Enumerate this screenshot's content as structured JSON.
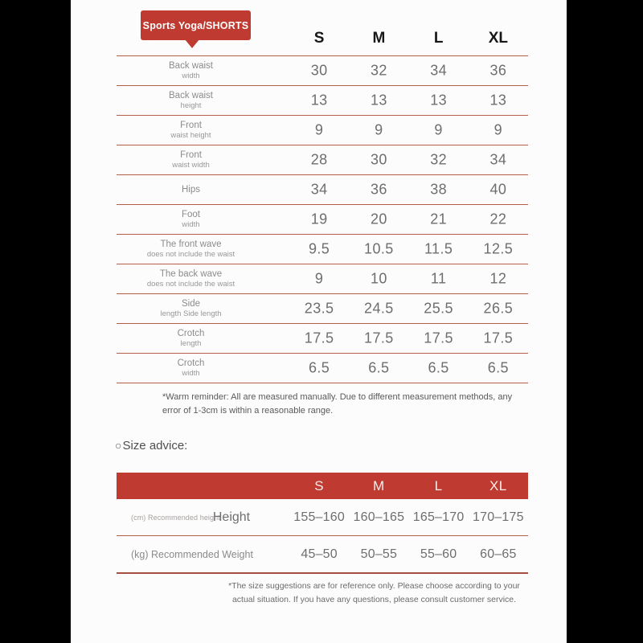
{
  "colors": {
    "accent_red": "#bf3a30",
    "divider_line": "#b65c4b",
    "background_black": "#000000",
    "panel_white": "#fcfcfc"
  },
  "chart_data": {
    "type": "table",
    "title": "Sports Yoga/SHORTS",
    "columns": [
      "S",
      "M",
      "L",
      "XL"
    ],
    "rows": [
      {
        "label": "Back waist",
        "sublabel": "width",
        "values": [
          "30",
          "32",
          "34",
          "36"
        ]
      },
      {
        "label": "Back waist",
        "sublabel": "height",
        "values": [
          "13",
          "13",
          "13",
          "13"
        ]
      },
      {
        "label": "Front",
        "sublabel": "waist height",
        "values": [
          "9",
          "9",
          "9",
          "9"
        ]
      },
      {
        "label": "Front",
        "sublabel": "waist width",
        "values": [
          "28",
          "30",
          "32",
          "34"
        ]
      },
      {
        "label": "Hips",
        "sublabel": "",
        "values": [
          "34",
          "36",
          "38",
          "40"
        ]
      },
      {
        "label": "Foot",
        "sublabel": "width",
        "values": [
          "19",
          "20",
          "21",
          "22"
        ]
      },
      {
        "label": "The front wave",
        "sublabel": "does not include the waist",
        "values": [
          "9.5",
          "10.5",
          "11.5",
          "12.5"
        ]
      },
      {
        "label": "The back wave",
        "sublabel": "does not include the waist",
        "values": [
          "9",
          "10",
          "11",
          "12"
        ]
      },
      {
        "label": "Side",
        "sublabel": "length Side length",
        "values": [
          "23.5",
          "24.5",
          "25.5",
          "26.5"
        ]
      },
      {
        "label": "Crotch",
        "sublabel": "length",
        "values": [
          "17.5",
          "17.5",
          "17.5",
          "17.5"
        ]
      },
      {
        "label": "Crotch",
        "sublabel": "width",
        "values": [
          "6.5",
          "6.5",
          "6.5",
          "6.5"
        ]
      }
    ],
    "notes": "*Warm reminder: All are measured manually. Due to different measurement methods, any error of 1-3cm is within a reasonable range.",
    "advice": {
      "bullet": "○",
      "heading": "Size advice:",
      "columns": [
        "S",
        "M",
        "L",
        "XL"
      ],
      "height_unit": "(cm) Recommended height",
      "height_label": "Height",
      "height_values": [
        "155–160",
        "160–165",
        "165–170",
        "170–175"
      ],
      "weight_label": "(kg) Recommended Weight",
      "weight_values": [
        "45–50",
        "50–55",
        "55–60",
        "60–65"
      ],
      "footnote": "*The size suggestions are for reference only. Please choose according to your actual situation. If you have any questions, please consult customer service."
    }
  }
}
